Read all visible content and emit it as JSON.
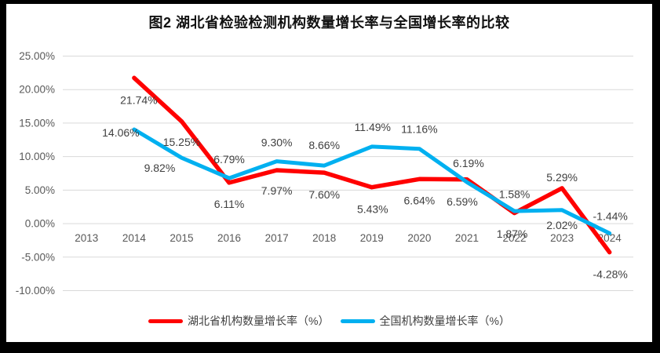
{
  "title": "图2  湖北省检验检测机构数量增长率与全国增长率的比较",
  "chart_data": {
    "type": "line",
    "categories": [
      "2013",
      "2014",
      "2015",
      "2016",
      "2017",
      "2018",
      "2019",
      "2020",
      "2021",
      "2022",
      "2023",
      "2024"
    ],
    "ylim": [
      -10,
      25
    ],
    "ytick_step": 5,
    "yticks": [
      "25.00%",
      "20.00%",
      "15.00%",
      "10.00%",
      "5.00%",
      "0.00%",
      "-5.00%",
      "-10.00%"
    ],
    "grid": true,
    "legend_position": "bottom",
    "colors": {
      "gridline": "#d9d9d9",
      "axis_text": "#595959",
      "data_label_text": "#404040",
      "hubei": "#ff0000",
      "national": "#00b0f0"
    },
    "series": [
      {
        "name": "湖北省机构数量增长率（%）",
        "key": "hubei",
        "color": "#ff0000",
        "stroke_width": 5.5,
        "points": [
          {
            "category": "2014",
            "value": 21.74,
            "label": "21.74%",
            "dx": 6,
            "dy": 28
          },
          {
            "category": "2015",
            "value": 15.25,
            "label": "15.25%",
            "dx": 0,
            "dy": 26
          },
          {
            "category": "2016",
            "value": 6.11,
            "label": "6.11%",
            "dx": 0,
            "dy": 27
          },
          {
            "category": "2017",
            "value": 7.97,
            "label": "7.97%",
            "dx": 0,
            "dy": 26
          },
          {
            "category": "2018",
            "value": 7.6,
            "label": "7.60%",
            "dx": 0,
            "dy": 28
          },
          {
            "category": "2019",
            "value": 5.43,
            "label": "5.43%",
            "dx": 1,
            "dy": 28
          },
          {
            "category": "2020",
            "value": 6.64,
            "label": "6.64%",
            "dx": 0,
            "dy": 27
          },
          {
            "category": "2021",
            "value": 6.59,
            "label": "6.59%",
            "dx": -6,
            "dy": 28
          },
          {
            "category": "2022",
            "value": 1.58,
            "label": "1.58%",
            "dx": 0,
            "dy": -24
          },
          {
            "category": "2023",
            "value": 5.29,
            "label": "5.29%",
            "dx": 0,
            "dy": -14
          },
          {
            "category": "2024",
            "value": -4.28,
            "label": "-4.28%",
            "dx": 1,
            "dy": 28
          }
        ]
      },
      {
        "name": "全国机构数量增长率（%）",
        "key": "national",
        "color": "#00b0f0",
        "stroke_width": 5,
        "points": [
          {
            "category": "2014",
            "value": 14.06,
            "label": "14.06%",
            "dx": -17,
            "dy": 4
          },
          {
            "category": "2015",
            "value": 9.82,
            "label": "9.82%",
            "dx": -28,
            "dy": 13
          },
          {
            "category": "2016",
            "value": 6.79,
            "label": "6.79%",
            "dx": 0,
            "dy": -24
          },
          {
            "category": "2017",
            "value": 9.3,
            "label": "9.30%",
            "dx": 0,
            "dy": -24
          },
          {
            "category": "2018",
            "value": 8.66,
            "label": "8.66%",
            "dx": 0,
            "dy": -26
          },
          {
            "category": "2019",
            "value": 11.49,
            "label": "11.49%",
            "dx": 1,
            "dy": -25
          },
          {
            "category": "2020",
            "value": 11.16,
            "label": "11.16%",
            "dx": 0,
            "dy": -25
          },
          {
            "category": "2021",
            "value": 6.19,
            "label": "6.19%",
            "dx": 2,
            "dy": -24
          },
          {
            "category": "2022",
            "value": 1.87,
            "label": "1.87%",
            "dx": -3,
            "dy": 29
          },
          {
            "category": "2023",
            "value": 2.02,
            "label": "2.02%",
            "dx": 0,
            "dy": 19
          },
          {
            "category": "2024",
            "value": -1.44,
            "label": "-1.44%",
            "dx": 1,
            "dy": -22
          }
        ]
      }
    ]
  }
}
